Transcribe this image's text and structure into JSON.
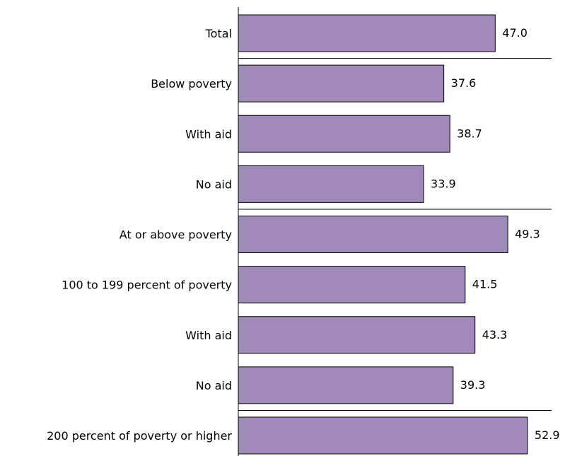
{
  "chart_data": {
    "type": "bar",
    "orientation": "horizontal",
    "categories": [
      "Total",
      "Below poverty",
      "With aid",
      "No aid",
      "At or above poverty",
      "100 to 199 percent of poverty",
      "With aid",
      "No aid",
      "200 percent of poverty or higher"
    ],
    "values": [
      47.0,
      37.6,
      38.7,
      33.9,
      49.3,
      41.5,
      43.3,
      39.3,
      52.9
    ],
    "value_labels": [
      "47.0",
      "37.6",
      "38.7",
      "33.9",
      "49.3",
      "41.5",
      "43.3",
      "39.3",
      "52.9"
    ],
    "group_separators_after": [
      0,
      3,
      7
    ],
    "bar_color": "#a08ab9",
    "xlim": [
      0,
      60
    ],
    "title": "",
    "xlabel": "",
    "ylabel": "",
    "grid": false,
    "legend": "none"
  }
}
